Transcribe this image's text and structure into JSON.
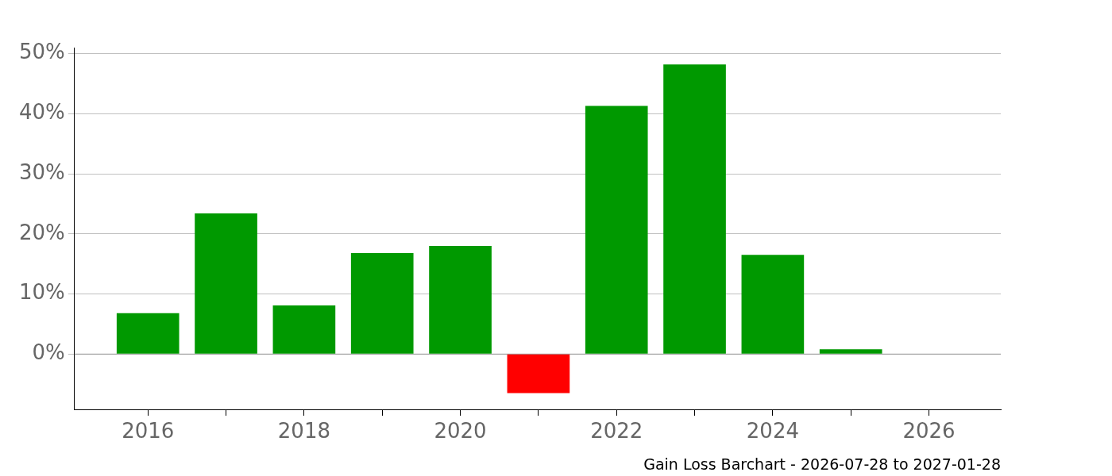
{
  "chart_data": {
    "type": "bar",
    "title": "Gain Loss Barchart - 2026-07-28 to 2027-01-28",
    "x": [
      2016,
      2017,
      2018,
      2019,
      2020,
      2021,
      2022,
      2023,
      2024,
      2025,
      2026
    ],
    "values": [
      6.8,
      23.4,
      8.1,
      16.8,
      18.0,
      -6.5,
      41.3,
      48.2,
      16.5,
      0.8,
      0
    ],
    "colors": [
      "#009900",
      "#009900",
      "#009900",
      "#009900",
      "#009900",
      "#ff0000",
      "#009900",
      "#009900",
      "#009900",
      "#009900",
      "#009900"
    ],
    "xlim": [
      2015.06,
      2026.92
    ],
    "xticks": [
      2016,
      {
        "value": 2017,
        "label": null
      },
      2018,
      {
        "value": 2019,
        "label": null
      },
      2020,
      {
        "value": 2021,
        "label": null
      },
      2022,
      {
        "value": 2023,
        "label": null
      },
      2024,
      {
        "value": 2025,
        "label": null
      },
      2026
    ],
    "ylim": [
      -9.2,
      51
    ],
    "yticks": [
      {
        "value": 0,
        "label": "0%"
      },
      {
        "value": 10,
        "label": "10%"
      },
      {
        "value": 20,
        "label": "20%"
      },
      {
        "value": 30,
        "label": "30%"
      },
      {
        "value": 40,
        "label": "40%"
      },
      {
        "value": 50,
        "label": "50%"
      }
    ],
    "ref_lines": [
      {
        "axis": "y",
        "value": 0,
        "color": "#999999"
      }
    ],
    "grid": "y",
    "legend": false
  }
}
